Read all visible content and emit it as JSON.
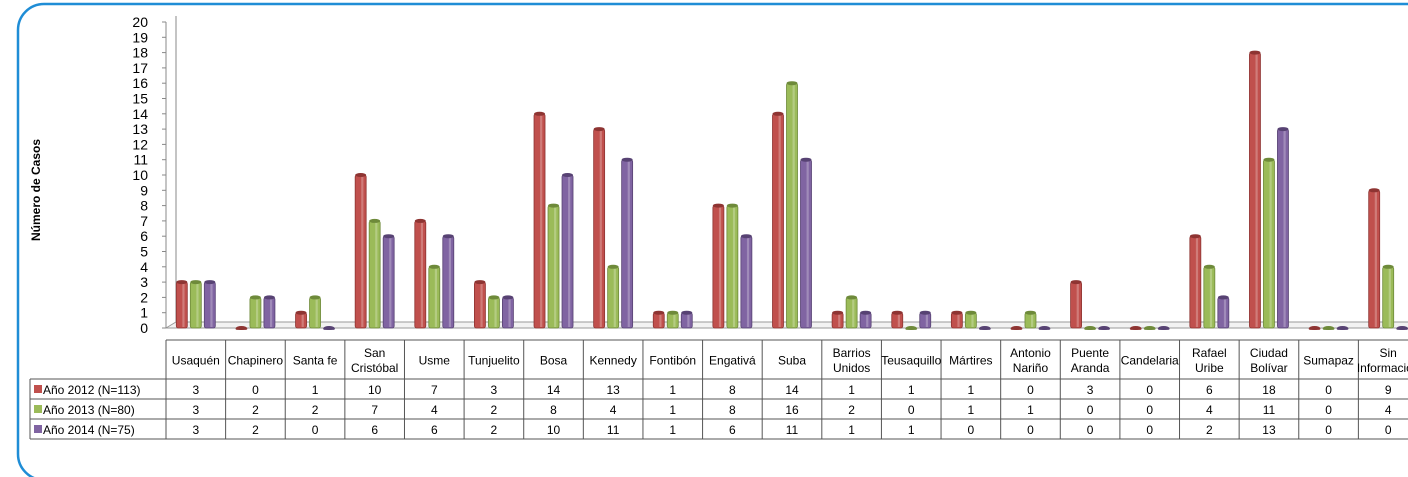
{
  "chart_data": {
    "type": "bar",
    "ylabel": "Número de Casos",
    "ylim": [
      0,
      20
    ],
    "yticks": [
      "0",
      "1",
      "2",
      "3",
      "4",
      "5",
      "6",
      "7",
      "8",
      "9",
      "10",
      "11",
      "12",
      "13",
      "14",
      "15",
      "16",
      "17",
      "18",
      "19",
      "20"
    ],
    "categories": [
      [
        "Usaquén"
      ],
      [
        "Chapinero"
      ],
      [
        "Santa fe"
      ],
      [
        "San",
        "Cristóbal"
      ],
      [
        "Usme"
      ],
      [
        "Tunjuelito"
      ],
      [
        "Bosa"
      ],
      [
        "Kennedy"
      ],
      [
        "Fontibón"
      ],
      [
        "Engativá"
      ],
      [
        "Suba"
      ],
      [
        "Barrios",
        "Unidos"
      ],
      [
        "Teusaquillo"
      ],
      [
        "Mártires"
      ],
      [
        "Antonio",
        "Nariño"
      ],
      [
        "Puente",
        "Aranda"
      ],
      [
        "Candelaria"
      ],
      [
        "Rafael",
        "Uribe"
      ],
      [
        "Ciudad",
        "Bolívar"
      ],
      [
        "Sumapaz"
      ],
      [
        "Sin",
        "Información"
      ]
    ],
    "series": [
      {
        "name": "Año 2012 (N=113)",
        "color": "#C0504D",
        "dark": "#8E3432",
        "values": [
          3,
          0,
          1,
          10,
          7,
          3,
          14,
          13,
          1,
          8,
          14,
          1,
          1,
          1,
          0,
          3,
          0,
          6,
          18,
          0,
          9
        ]
      },
      {
        "name": "Año 2013 (N=80)",
        "color": "#9BBB59",
        "dark": "#6E8A3A",
        "values": [
          3,
          2,
          2,
          7,
          4,
          2,
          8,
          4,
          1,
          8,
          16,
          2,
          0,
          1,
          1,
          0,
          0,
          4,
          11,
          0,
          4
        ]
      },
      {
        "name": "Año 2014 (N=75)",
        "color": "#8064A2",
        "dark": "#574273",
        "values": [
          3,
          2,
          0,
          6,
          6,
          2,
          10,
          11,
          1,
          6,
          11,
          1,
          1,
          0,
          0,
          0,
          0,
          2,
          13,
          0,
          0
        ]
      }
    ],
    "frame_color": "#1F8DD6",
    "legend": "data-table"
  }
}
